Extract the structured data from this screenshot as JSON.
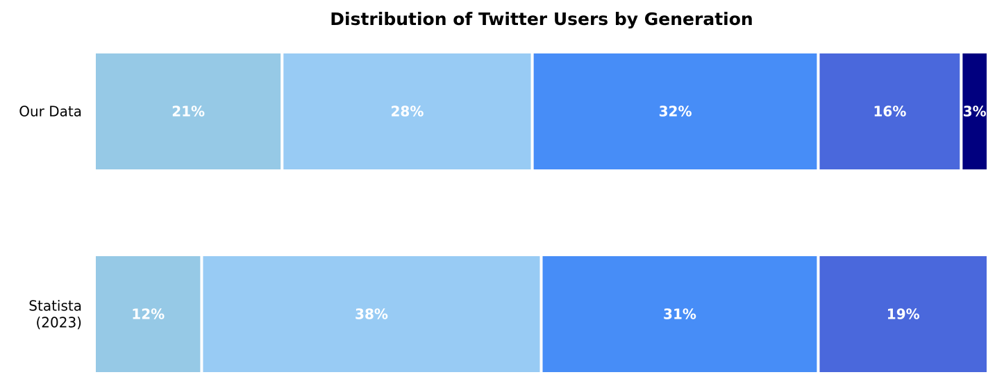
{
  "chart_data": {
    "type": "bar",
    "orientation": "horizontal",
    "stacked": true,
    "title": "Distribution of Twitter Users by Generation",
    "xlabel": "",
    "ylabel": "",
    "grid": false,
    "xlim": [
      0,
      100
    ],
    "categories": [
      {
        "lines": [
          "Our Data"
        ]
      },
      {
        "lines": [
          "Statista",
          "(2023)"
        ]
      }
    ],
    "rows": [
      {
        "values": [
          21,
          28,
          32,
          16,
          3
        ],
        "labels": [
          "21%",
          "28%",
          "32%",
          "16%",
          "3%"
        ]
      },
      {
        "values": [
          12,
          38,
          31,
          19
        ],
        "labels": [
          "12%",
          "38%",
          "31%",
          "19%"
        ]
      }
    ],
    "colors": [
      "#96c9e6",
      "#98cbf4",
      "#478df7",
      "#4a68dc",
      "#01007f"
    ],
    "label_color": "#ffffff"
  }
}
